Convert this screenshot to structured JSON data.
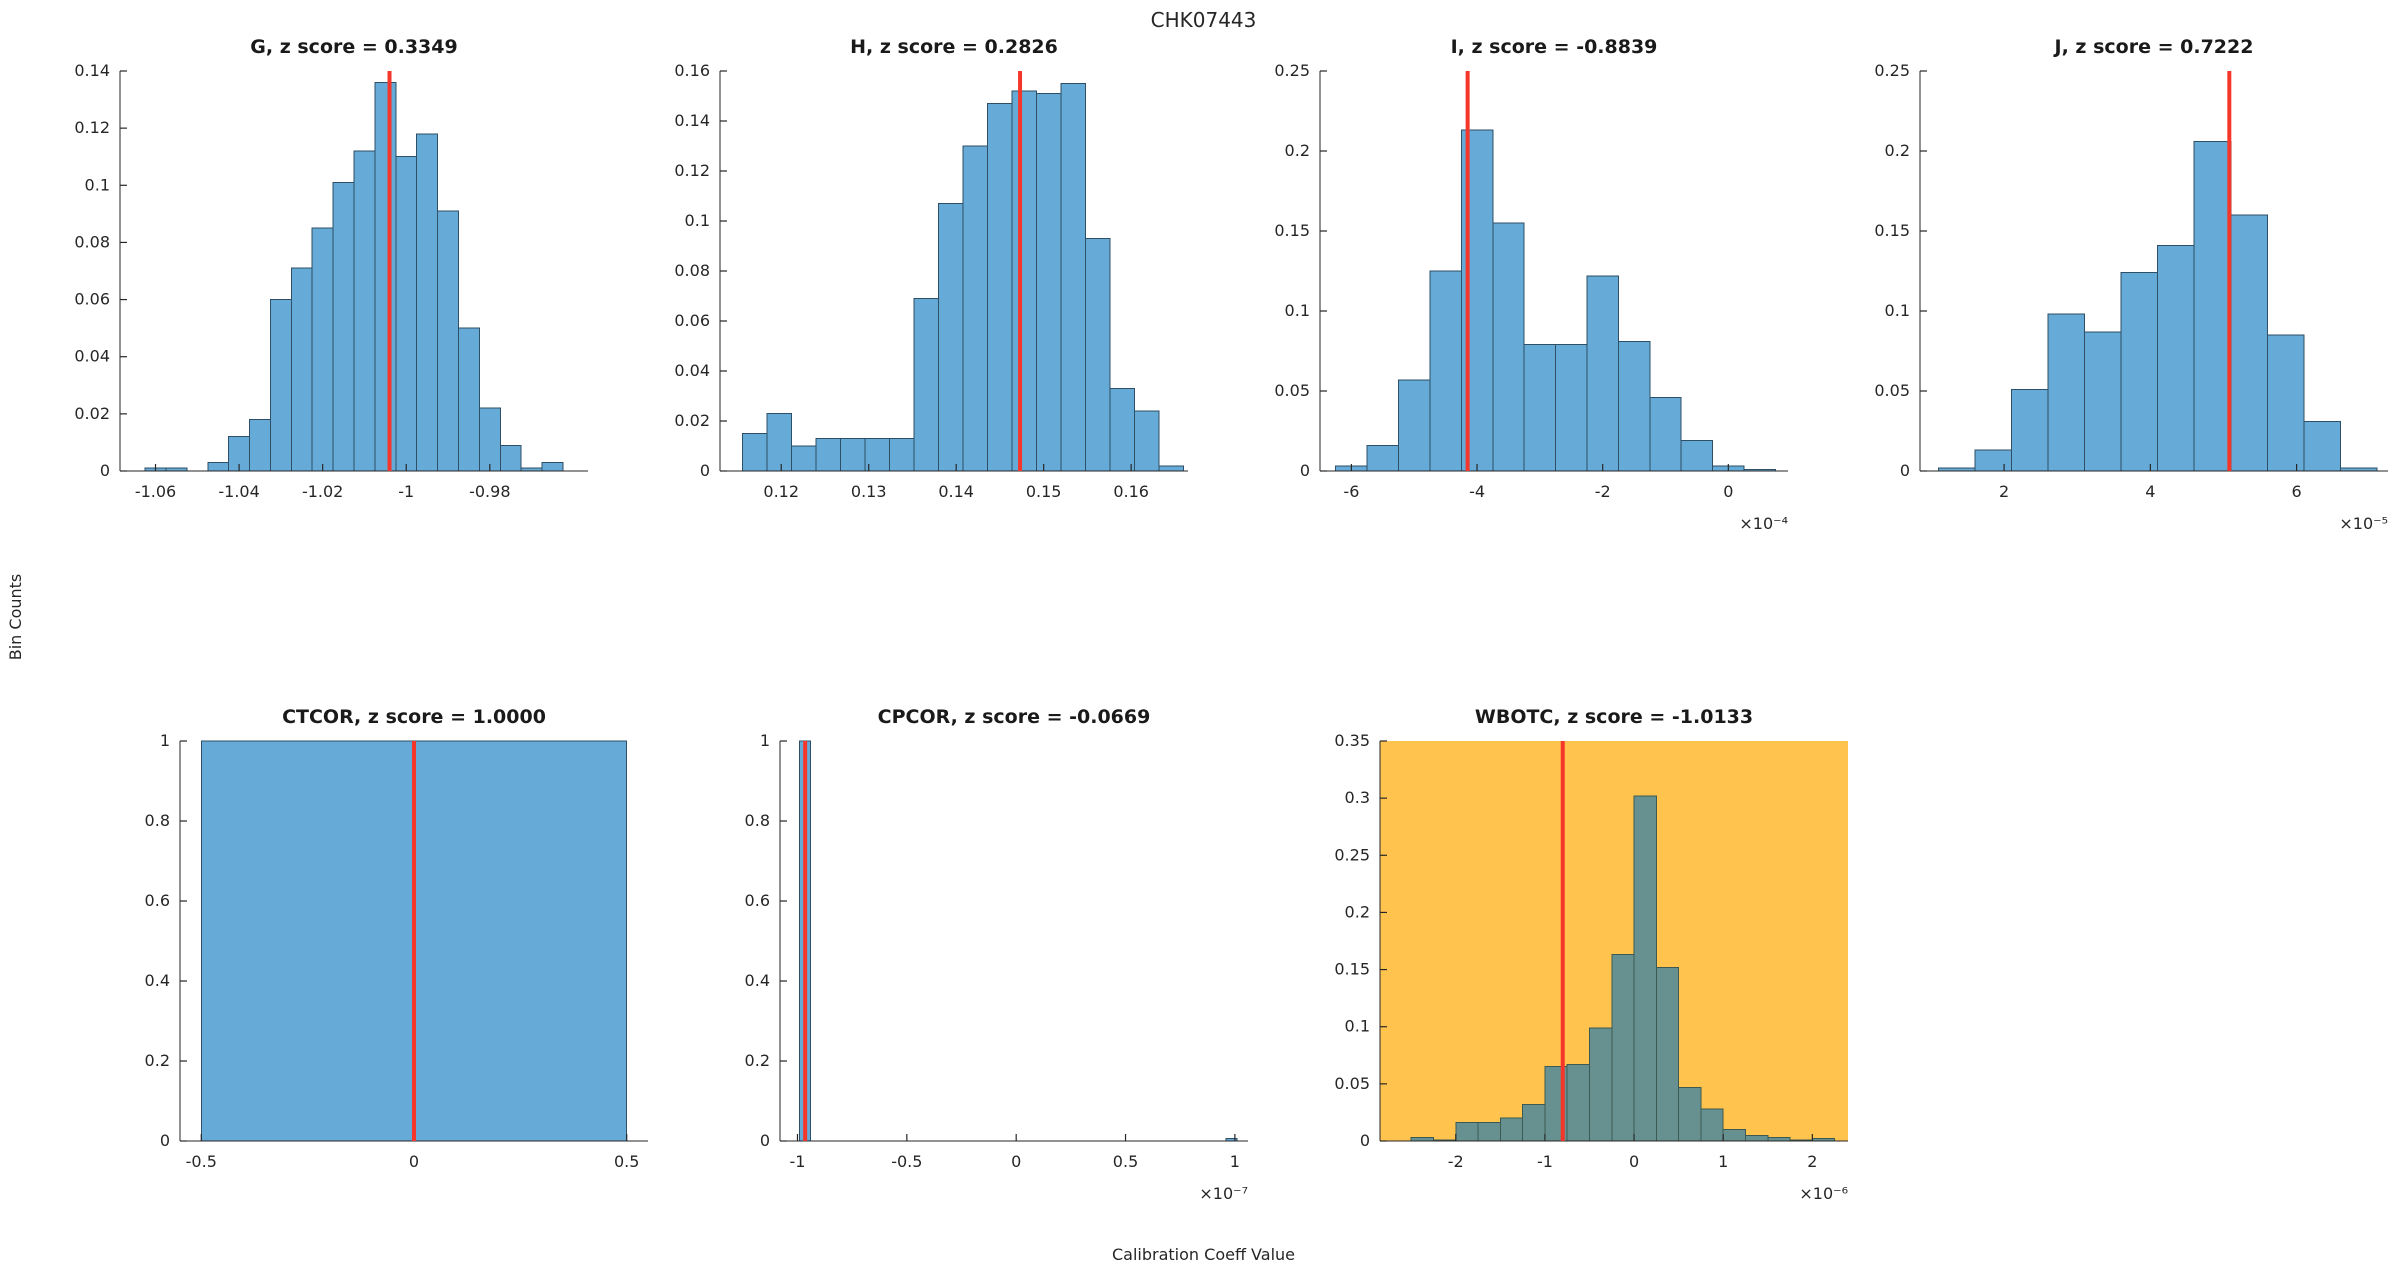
{
  "figure": {
    "title": "CHK07443",
    "xlabel": "Calibration Coeff Value",
    "ylabel": "Bin Counts"
  },
  "colors": {
    "bar_fill": "#66AAD7",
    "bar_edge": "#2F4F66",
    "ref_line": "#F5372B",
    "axis": "#262626",
    "text": "#262626",
    "title_text": "#1A1A1A",
    "highlight_bg": "#FFC34E",
    "highlight_bar_fill": "#669190",
    "highlight_bar_edge": "#3D5A52"
  },
  "chart_data": [
    {
      "key": "G",
      "type": "bar",
      "chart_kind": "histogram",
      "title": "G, z score = 0.3349",
      "z_score": 0.3349,
      "xlim": [
        -1.0685,
        -0.9565
      ],
      "ylim": [
        0,
        0.14
      ],
      "xticks": {
        "values": [
          -1.06,
          -1.04,
          -1.02,
          -1.0,
          -0.98
        ],
        "labels": [
          "-1.06",
          "-1.04",
          "-1.02",
          "-1",
          "-0.98"
        ]
      },
      "yticks": {
        "values": [
          0,
          0.02,
          0.04,
          0.06,
          0.08,
          0.1,
          0.12,
          0.14
        ],
        "labels": [
          "0",
          "0.02",
          "0.04",
          "0.06",
          "0.08",
          "0.1",
          "0.12",
          "0.14"
        ]
      },
      "x_exponent_label": "",
      "bins": {
        "start": -1.0625,
        "width": 0.005,
        "heights": [
          0.001,
          0.001,
          0,
          0.003,
          0.012,
          0.018,
          0.06,
          0.071,
          0.085,
          0.101,
          0.112,
          0.136,
          0.11,
          0.118,
          0.091,
          0.05,
          0.022,
          0.009,
          0.001,
          0.003
        ]
      },
      "ref_line_x": -1.004,
      "highlighted": false
    },
    {
      "key": "H",
      "type": "bar",
      "chart_kind": "histogram",
      "title": "H, z score = 0.2826",
      "z_score": 0.2826,
      "xlim": [
        0.113,
        0.1665
      ],
      "ylim": [
        0,
        0.16
      ],
      "xticks": {
        "values": [
          0.12,
          0.13,
          0.14,
          0.15,
          0.16
        ],
        "labels": [
          "0.12",
          "0.13",
          "0.14",
          "0.15",
          "0.16"
        ]
      },
      "yticks": {
        "values": [
          0,
          0.02,
          0.04,
          0.06,
          0.08,
          0.1,
          0.12,
          0.14,
          0.16
        ],
        "labels": [
          "0",
          "0.02",
          "0.04",
          "0.06",
          "0.08",
          "0.1",
          "0.12",
          "0.14",
          "0.16"
        ]
      },
      "x_exponent_label": "",
      "bins": {
        "start": 0.1156,
        "width": 0.0028,
        "heights": [
          0.015,
          0.023,
          0.01,
          0.013,
          0.013,
          0.013,
          0.013,
          0.069,
          0.107,
          0.13,
          0.147,
          0.152,
          0.151,
          0.155,
          0.093,
          0.033,
          0.024,
          0.002
        ]
      },
      "ref_line_x": 0.1473,
      "highlighted": false
    },
    {
      "key": "I",
      "type": "bar",
      "chart_kind": "histogram",
      "title": "I, z score = -0.8839",
      "z_score": -0.8839,
      "xlim": [
        -0.00065,
        9.5e-05
      ],
      "ylim": [
        0,
        0.25
      ],
      "xticks": {
        "values": [
          -0.0006,
          -0.0004,
          -0.0002,
          0
        ],
        "labels": [
          "-6",
          "-4",
          "-2",
          "0"
        ]
      },
      "yticks": {
        "values": [
          0,
          0.05,
          0.1,
          0.15,
          0.2,
          0.25
        ],
        "labels": [
          "0",
          "0.05",
          "0.1",
          "0.15",
          "0.2",
          "0.25"
        ]
      },
      "x_exponent_label": "×10⁻⁴",
      "bins": {
        "start": -0.000625,
        "width": 5e-05,
        "heights": [
          0.003,
          0.016,
          0.057,
          0.125,
          0.213,
          0.155,
          0.079,
          0.079,
          0.122,
          0.081,
          0.046,
          0.019,
          0.003,
          0.001
        ]
      },
      "ref_line_x": -0.000415,
      "highlighted": false
    },
    {
      "key": "J",
      "type": "bar",
      "chart_kind": "histogram",
      "title": "J, z score = 0.7222",
      "z_score": 0.7222,
      "xlim": [
        8.5e-06,
        7.25e-05
      ],
      "ylim": [
        0,
        0.25
      ],
      "xticks": {
        "values": [
          2e-05,
          4e-05,
          6e-05
        ],
        "labels": [
          "2",
          "4",
          "6"
        ]
      },
      "yticks": {
        "values": [
          0,
          0.05,
          0.1,
          0.15,
          0.2,
          0.25
        ],
        "labels": [
          "0",
          "0.05",
          "0.1",
          "0.15",
          "0.2",
          "0.25"
        ]
      },
      "x_exponent_label": "×10⁻⁵",
      "bins": {
        "start": 1.1e-05,
        "width": 5e-06,
        "heights": [
          0.002,
          0.013,
          0.051,
          0.098,
          0.087,
          0.124,
          0.141,
          0.206,
          0.16,
          0.085,
          0.031,
          0.002
        ]
      },
      "ref_line_x": 5.08e-05,
      "highlighted": false
    },
    {
      "key": "CTCOR",
      "type": "bar",
      "chart_kind": "histogram",
      "title": "CTCOR, z score = 1.0000",
      "z_score": 1.0,
      "xlim": [
        -0.55,
        0.55
      ],
      "ylim": [
        0,
        1
      ],
      "xticks": {
        "values": [
          -0.5,
          0,
          0.5
        ],
        "labels": [
          "-0.5",
          "0",
          "0.5"
        ]
      },
      "yticks": {
        "values": [
          0,
          0.2,
          0.4,
          0.6,
          0.8,
          1.0
        ],
        "labels": [
          "0",
          "0.2",
          "0.4",
          "0.6",
          "0.8",
          "1"
        ]
      },
      "x_exponent_label": "",
      "bars": [
        [
          -0.5,
          0.5,
          1.0
        ]
      ],
      "ref_line_x": 0,
      "highlighted": false
    },
    {
      "key": "CPCOR",
      "type": "bar",
      "chart_kind": "histogram",
      "title": "CPCOR, z score = -0.0669",
      "z_score": -0.0669,
      "xlim": [
        -1.08e-07,
        1.06e-07
      ],
      "ylim": [
        0,
        1
      ],
      "xticks": {
        "values": [
          -1e-07,
          -5e-08,
          0,
          5e-08,
          1e-07
        ],
        "labels": [
          "-1",
          "-0.5",
          "0",
          "0.5",
          "1"
        ]
      },
      "yticks": {
        "values": [
          0,
          0.2,
          0.4,
          0.6,
          0.8,
          1.0
        ],
        "labels": [
          "0",
          "0.2",
          "0.4",
          "0.6",
          "0.8",
          "1"
        ]
      },
      "x_exponent_label": "×10⁻⁷",
      "bars": [
        [
          -9.9e-08,
          -9.4e-08,
          1.0
        ],
        [
          9.6e-08,
          1.01e-07,
          0.006
        ]
      ],
      "ref_line_x": -9.65e-08,
      "highlighted": false
    },
    {
      "key": "WBOTC",
      "type": "bar",
      "chart_kind": "histogram",
      "title": "WBOTC, z score = -1.0133",
      "z_score": -1.0133,
      "xlim": [
        -2.85e-06,
        2.4e-06
      ],
      "ylim": [
        0,
        0.35
      ],
      "xticks": {
        "values": [
          -2e-06,
          -1e-06,
          0,
          1e-06,
          2e-06
        ],
        "labels": [
          "-2",
          "-1",
          "0",
          "1",
          "2"
        ]
      },
      "yticks": {
        "values": [
          0,
          0.05,
          0.1,
          0.15,
          0.2,
          0.25,
          0.3,
          0.35
        ],
        "labels": [
          "0",
          "0.05",
          "0.1",
          "0.15",
          "0.2",
          "0.25",
          "0.3",
          "0.35"
        ]
      },
      "x_exponent_label": "×10⁻⁶",
      "bins": {
        "start": -2.5e-06,
        "width": 2.5e-07,
        "heights": [
          0.003,
          0.001,
          0.016,
          0.016,
          0.02,
          0.032,
          0.065,
          0.067,
          0.099,
          0.163,
          0.302,
          0.152,
          0.047,
          0.028,
          0.01,
          0.005,
          0.003,
          0.001,
          0.002
        ]
      },
      "ref_line_x": -8e-07,
      "highlighted": true
    }
  ]
}
